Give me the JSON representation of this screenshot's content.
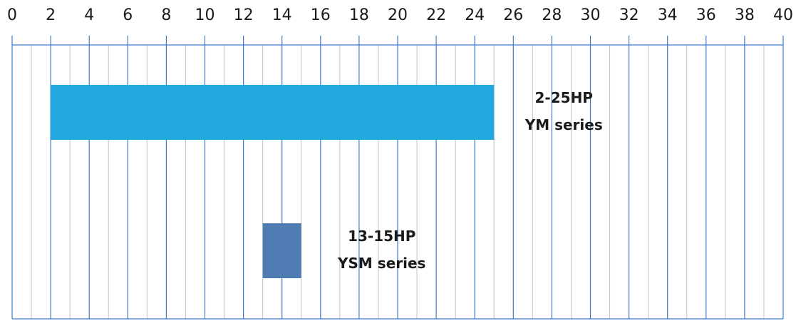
{
  "chart_data": {
    "type": "bar",
    "xlim": [
      0,
      40
    ],
    "xticks": [
      0,
      2,
      4,
      6,
      8,
      10,
      12,
      14,
      16,
      18,
      20,
      22,
      24,
      26,
      28,
      30,
      32,
      34,
      36,
      38,
      40
    ],
    "xminorticks": [
      1,
      3,
      5,
      7,
      9,
      11,
      13,
      15,
      17,
      19,
      21,
      23,
      25,
      27,
      29,
      31,
      33,
      35,
      37,
      39
    ],
    "grid": true,
    "bars": [
      {
        "start": 2,
        "end": 25,
        "color": "#23a7df",
        "label": [
          "2-25HP",
          "YM series"
        ]
      },
      {
        "start": 13,
        "end": 15,
        "color": "#4f7db3",
        "label": [
          "13-15HP",
          "YSM series"
        ]
      }
    ]
  }
}
